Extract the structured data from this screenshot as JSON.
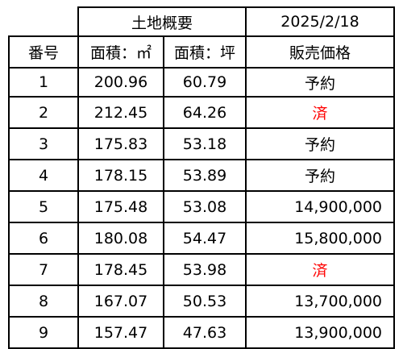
{
  "header": {
    "section_title": "土地概要",
    "date": "2025/2/18"
  },
  "columns": {
    "number": "番号",
    "area_m2": "面積：㎡",
    "area_tsubo": "面積：坪",
    "price": "販売価格"
  },
  "rows": [
    {
      "no": "1",
      "m2": "200.96",
      "tsubo": "60.79",
      "price": "予約"
    },
    {
      "no": "2",
      "m2": "212.45",
      "tsubo": "64.26",
      "price": "済"
    },
    {
      "no": "3",
      "m2": "175.83",
      "tsubo": "53.18",
      "price": "予約"
    },
    {
      "no": "4",
      "m2": "178.15",
      "tsubo": "53.89",
      "price": "予約"
    },
    {
      "no": "5",
      "m2": "175.48",
      "tsubo": "53.08",
      "price": "14,900,000"
    },
    {
      "no": "6",
      "m2": "180.08",
      "tsubo": "54.47",
      "price": "15,800,000"
    },
    {
      "no": "7",
      "m2": "178.45",
      "tsubo": "53.98",
      "price": "済"
    },
    {
      "no": "8",
      "m2": "167.07",
      "tsubo": "50.53",
      "price": "13,700,000"
    },
    {
      "no": "9",
      "m2": "157.47",
      "tsubo": "47.63",
      "price": "13,900,000"
    }
  ],
  "colors": {
    "sold_text": "#ff0000",
    "text": "#000000",
    "border": "#000000"
  }
}
